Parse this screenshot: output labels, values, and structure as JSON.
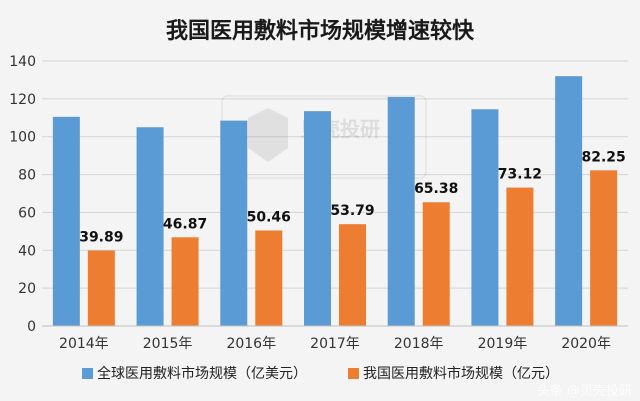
{
  "chart_data": {
    "type": "bar",
    "title": "我国医用敷料市场规模增速较快",
    "categories": [
      "2014年",
      "2015年",
      "2016年",
      "2017年",
      "2018年",
      "2019年",
      "2020年"
    ],
    "series": [
      {
        "name": "全球医用敷料市场规模（亿美元）",
        "color": "#5b9bd5",
        "values": [
          110.5,
          105,
          108.5,
          113.5,
          121,
          114.5,
          132
        ]
      },
      {
        "name": "我国医用敷料市场规模（亿元）",
        "color": "#ed7d31",
        "values": [
          39.89,
          46.87,
          50.46,
          53.79,
          65.38,
          73.12,
          82.25
        ],
        "data_labels": [
          "39.89",
          "46.87",
          "50.46",
          "53.79",
          "65.38",
          "73.12",
          "82.25"
        ]
      }
    ],
    "ylim": [
      0,
      140
    ],
    "yticks": [
      0,
      20,
      40,
      60,
      80,
      100,
      120,
      140
    ],
    "grid": true,
    "legend_position": "bottom"
  },
  "watermark": {
    "text": "贝壳投研"
  },
  "corner_watermark": "头条 @贝壳投研"
}
